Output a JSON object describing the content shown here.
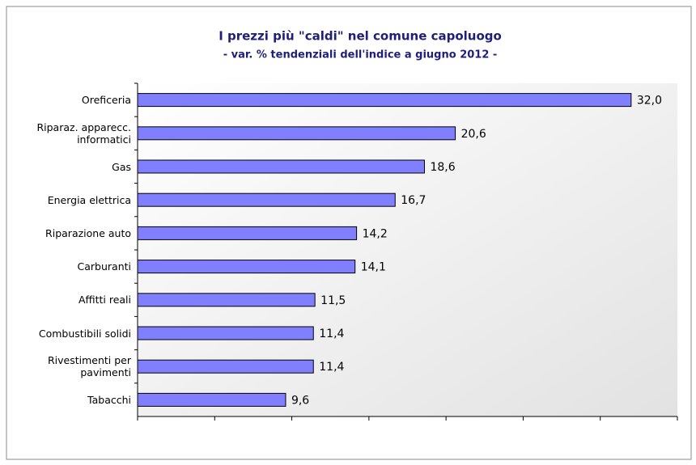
{
  "chart_data": {
    "type": "bar",
    "orientation": "horizontal",
    "title": "I prezzi più \"caldi\" nel comune capoluogo",
    "subtitle": "- var. % tendenziali dell'indice a giugno 2012 -",
    "categories": [
      "Oreficeria",
      "Riparaz. apparecc.\ninformatici",
      "Gas",
      "Energia elettrica",
      "Riparazione auto",
      "Carburanti",
      "Affitti reali",
      "Combustibili solidi",
      "Rivestimenti per\npavimenti",
      "Tabacchi"
    ],
    "values": [
      32.0,
      20.6,
      18.6,
      16.7,
      14.2,
      14.1,
      11.5,
      11.4,
      11.4,
      9.6
    ],
    "value_labels": [
      "32,0",
      "20,6",
      "18,6",
      "16,7",
      "14,2",
      "14,1",
      "11,5",
      "11,4",
      "11,4",
      "9,6"
    ],
    "color": "#8080ff",
    "xlim": [
      0,
      35
    ],
    "xticks": [
      0,
      5,
      10,
      15,
      20,
      25,
      30,
      35
    ]
  }
}
